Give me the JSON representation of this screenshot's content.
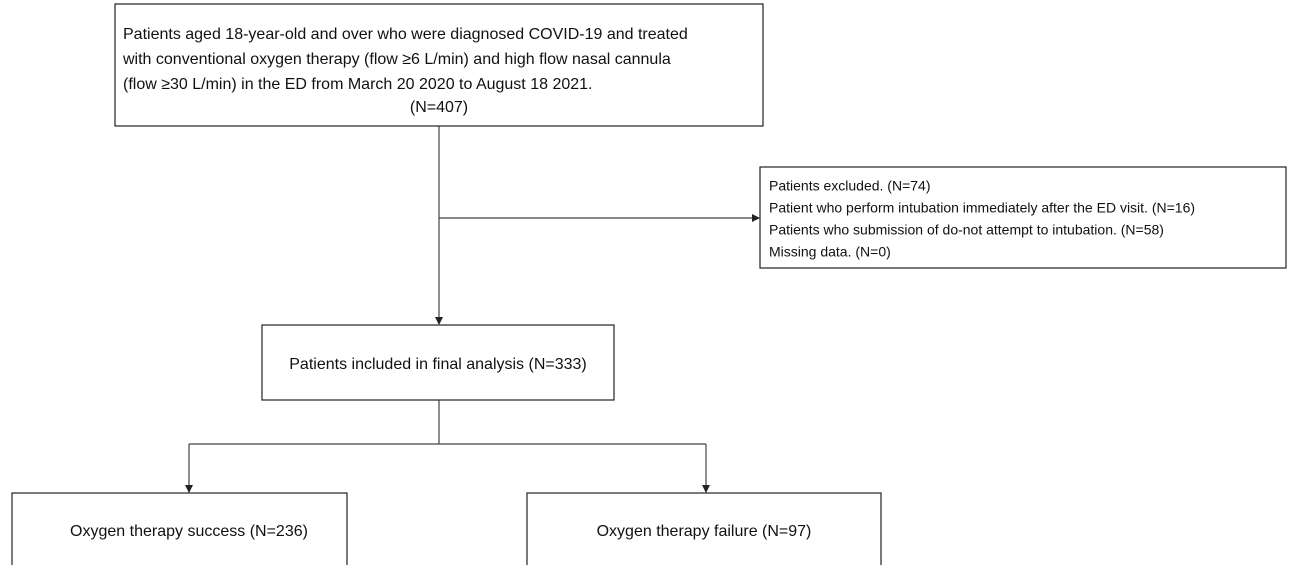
{
  "nodes": [
    {
      "lines": [
        "Patients aged 18-year-old and over who were diagnosed COVID-19 and treated",
        "with conventional oxygen therapy (flow ≥6 L/min) and high flow nasal cannula",
        "(flow ≥30 L/min) in the ED from March 20 2020 to August 18 2021.",
        "(N=407)"
      ]
    },
    {
      "lines": [
        "Patients excluded. (N=74)",
        "Patient who perform intubation immediately after the ED visit. (N=16)",
        "Patients who submission of do-not attempt to intubation. (N=58)",
        "Missing data. (N=0)"
      ]
    },
    {
      "lines": [
        "Patients included in final analysis (N=333)"
      ]
    },
    {
      "lines": [
        "Oxygen therapy success (N=236)"
      ]
    },
    {
      "lines": [
        "Oxygen therapy failure (N=97)"
      ]
    }
  ]
}
